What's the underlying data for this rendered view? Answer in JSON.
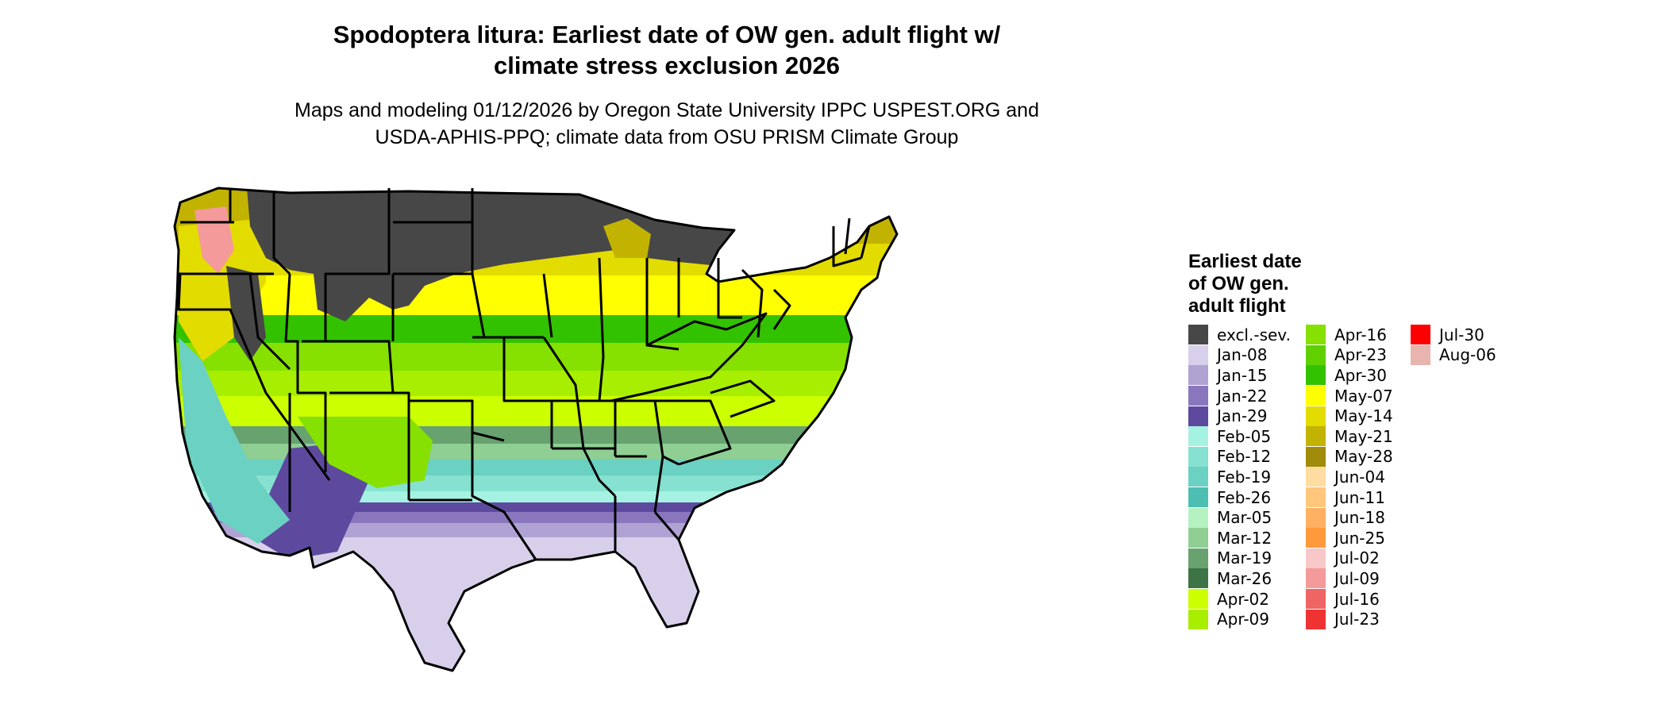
{
  "title_line1": "Spodoptera litura: Earliest date of OW gen. adult flight w/",
  "title_line2": "climate stress exclusion 2026",
  "subtitle_line1": "Maps and modeling 01/12/2026 by Oregon State University IPPC USPEST.ORG and",
  "subtitle_line2": "USDA-APHIS-PPQ; climate data from OSU PRISM Climate Group",
  "legend": {
    "title_line1": "Earliest date",
    "title_line2": "of OW gen.",
    "title_line3": "adult flight",
    "items": [
      {
        "label": "excl.-sev.",
        "color": "#474747"
      },
      {
        "label": "Jan-08",
        "color": "#d8d0ea"
      },
      {
        "label": "Jan-15",
        "color": "#b0a3d4"
      },
      {
        "label": "Jan-22",
        "color": "#8a76bd"
      },
      {
        "label": "Jan-29",
        "color": "#5d4a9e"
      },
      {
        "label": "Feb-05",
        "color": "#a6f2e2"
      },
      {
        "label": "Feb-12",
        "color": "#86e1d0"
      },
      {
        "label": "Feb-19",
        "color": "#6bd1c2"
      },
      {
        "label": "Feb-26",
        "color": "#4dbfb2"
      },
      {
        "label": "Mar-05",
        "color": "#b4f2c2"
      },
      {
        "label": "Mar-12",
        "color": "#8fcf93"
      },
      {
        "label": "Mar-19",
        "color": "#67a26f"
      },
      {
        "label": "Mar-26",
        "color": "#3d7447"
      },
      {
        "label": "Apr-02",
        "color": "#ccff00"
      },
      {
        "label": "Apr-09",
        "color": "#a8ee00"
      },
      {
        "label": "Apr-16",
        "color": "#86e000"
      },
      {
        "label": "Apr-23",
        "color": "#5fd100"
      },
      {
        "label": "Apr-30",
        "color": "#33c200"
      },
      {
        "label": "May-07",
        "color": "#ffff00"
      },
      {
        "label": "May-14",
        "color": "#e3dc00"
      },
      {
        "label": "May-21",
        "color": "#c2b300"
      },
      {
        "label": "May-28",
        "color": "#a08b0b"
      },
      {
        "label": "Jun-04",
        "color": "#ffdca0"
      },
      {
        "label": "Jun-11",
        "color": "#ffc67c"
      },
      {
        "label": "Jun-18",
        "color": "#ffb060"
      },
      {
        "label": "Jun-25",
        "color": "#ff9a3c"
      },
      {
        "label": "Jul-02",
        "color": "#f8c8c8"
      },
      {
        "label": "Jul-09",
        "color": "#f49a9a"
      },
      {
        "label": "Jul-16",
        "color": "#ef6464"
      },
      {
        "label": "Jul-23",
        "color": "#ef3333"
      },
      {
        "label": "Jul-30",
        "color": "#ff0000"
      },
      {
        "label": "Aug-06",
        "color": "#e8b4ae"
      }
    ]
  }
}
